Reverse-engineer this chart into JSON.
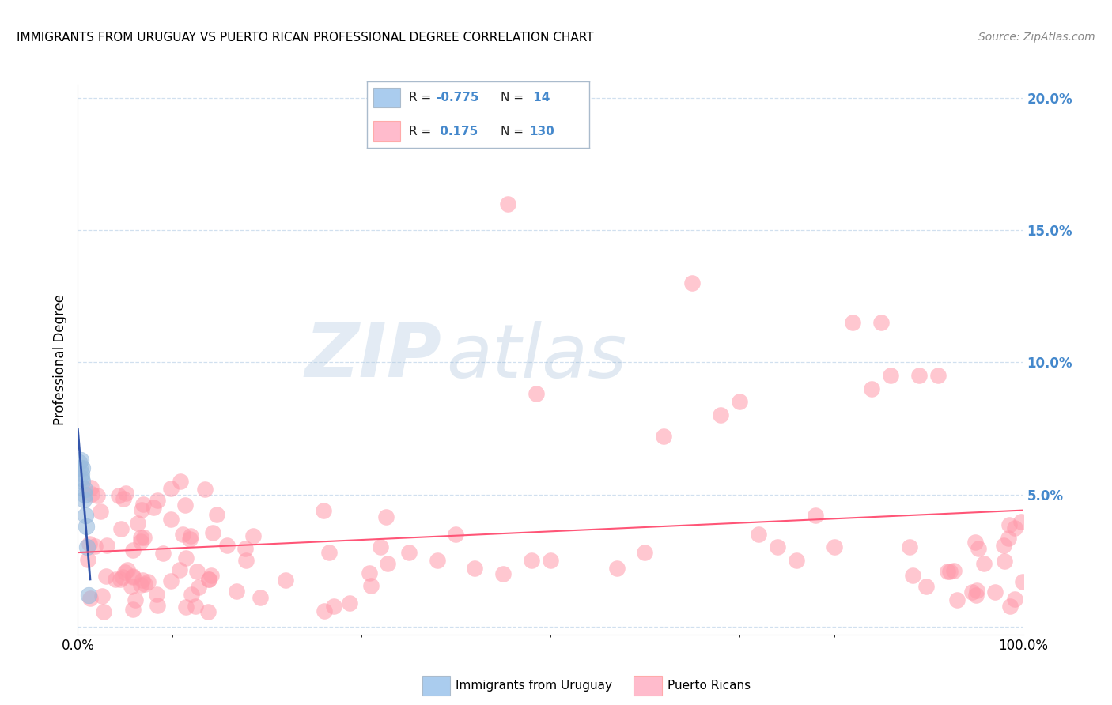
{
  "title": "IMMIGRANTS FROM URUGUAY VS PUERTO RICAN PROFESSIONAL DEGREE CORRELATION CHART",
  "source": "Source: ZipAtlas.com",
  "ylabel": "Professional Degree",
  "blue_color": "#99BBDD",
  "pink_color": "#FF99AA",
  "blue_fill": "#AACCEE",
  "pink_fill": "#FFBBCC",
  "blue_line_color": "#3355AA",
  "pink_line_color": "#FF5577",
  "background_color": "#FFFFFF",
  "watermark_zip": "ZIP",
  "watermark_atlas": "atlas",
  "title_fontsize": 11,
  "legend_r1_val": "-0.775",
  "legend_n1_val": "14",
  "legend_r2_val": "0.175",
  "legend_n2_val": "130"
}
